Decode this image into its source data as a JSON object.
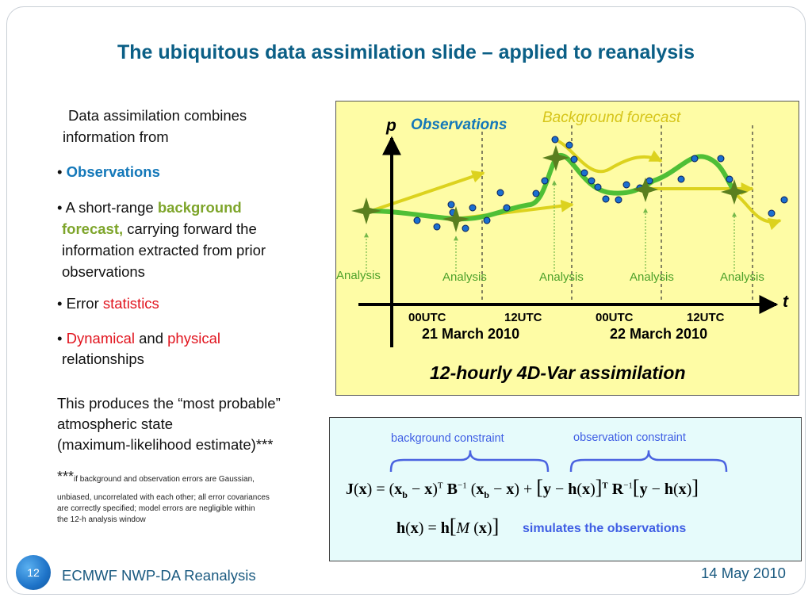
{
  "slide": {
    "title": "The ubiquitous data assimilation slide – applied to reanalysis",
    "intro": [
      "Data assimilation combines",
      "information from"
    ],
    "bullets": {
      "b1": "Observations",
      "b2_pre": "A short-range ",
      "b2_hl": "background",
      "b2_hl2": "forecast,",
      "b2_rest": " carrying forward the",
      "b2_l3": "information extracted from prior",
      "b2_l4": "observations",
      "b3_pre": "Error ",
      "b3_hl": "statistics",
      "b4_hl1": "Dynamical",
      "b4_mid": " and ",
      "b4_hl2": "physical",
      "b4_l2": "relationships"
    },
    "produces": [
      "This produces the “most probable”",
      "atmospheric state",
      "(maximum-likelihood estimate)***"
    ],
    "footnote": {
      "stars": "***",
      "l1": "if background and observation errors are Gaussian,",
      "l2": "unbiased, uncorrelated with each other; all error covariances",
      "l3": "are correctly specified; model errors are negligible within",
      "l4": "the 12-h analysis window"
    }
  },
  "diagram": {
    "p_label": "p",
    "t_label": "t",
    "observations_label": "Observations",
    "background_label": "Background forecast",
    "analysis_label": "Analysis",
    "ticks": [
      "00UTC",
      "12UTC",
      "00UTC",
      "12UTC"
    ],
    "date1": "21 March 2010",
    "date2": "22 March 2010",
    "caption": "12-hourly 4D-Var assimilation",
    "colors": {
      "observation": "#1b6fd0",
      "background_forecast": "#dcd21e",
      "analysis": "#4fbf36",
      "analysis_marker": "#5a7f1f"
    }
  },
  "equations": {
    "background_constraint": "background constraint",
    "observation_constraint": "observation constraint",
    "simulates": "simulates the observations"
  },
  "footer": {
    "page": "12",
    "left": "ECMWF NWP-DA Reanalysis",
    "right": "14 May 2010"
  }
}
